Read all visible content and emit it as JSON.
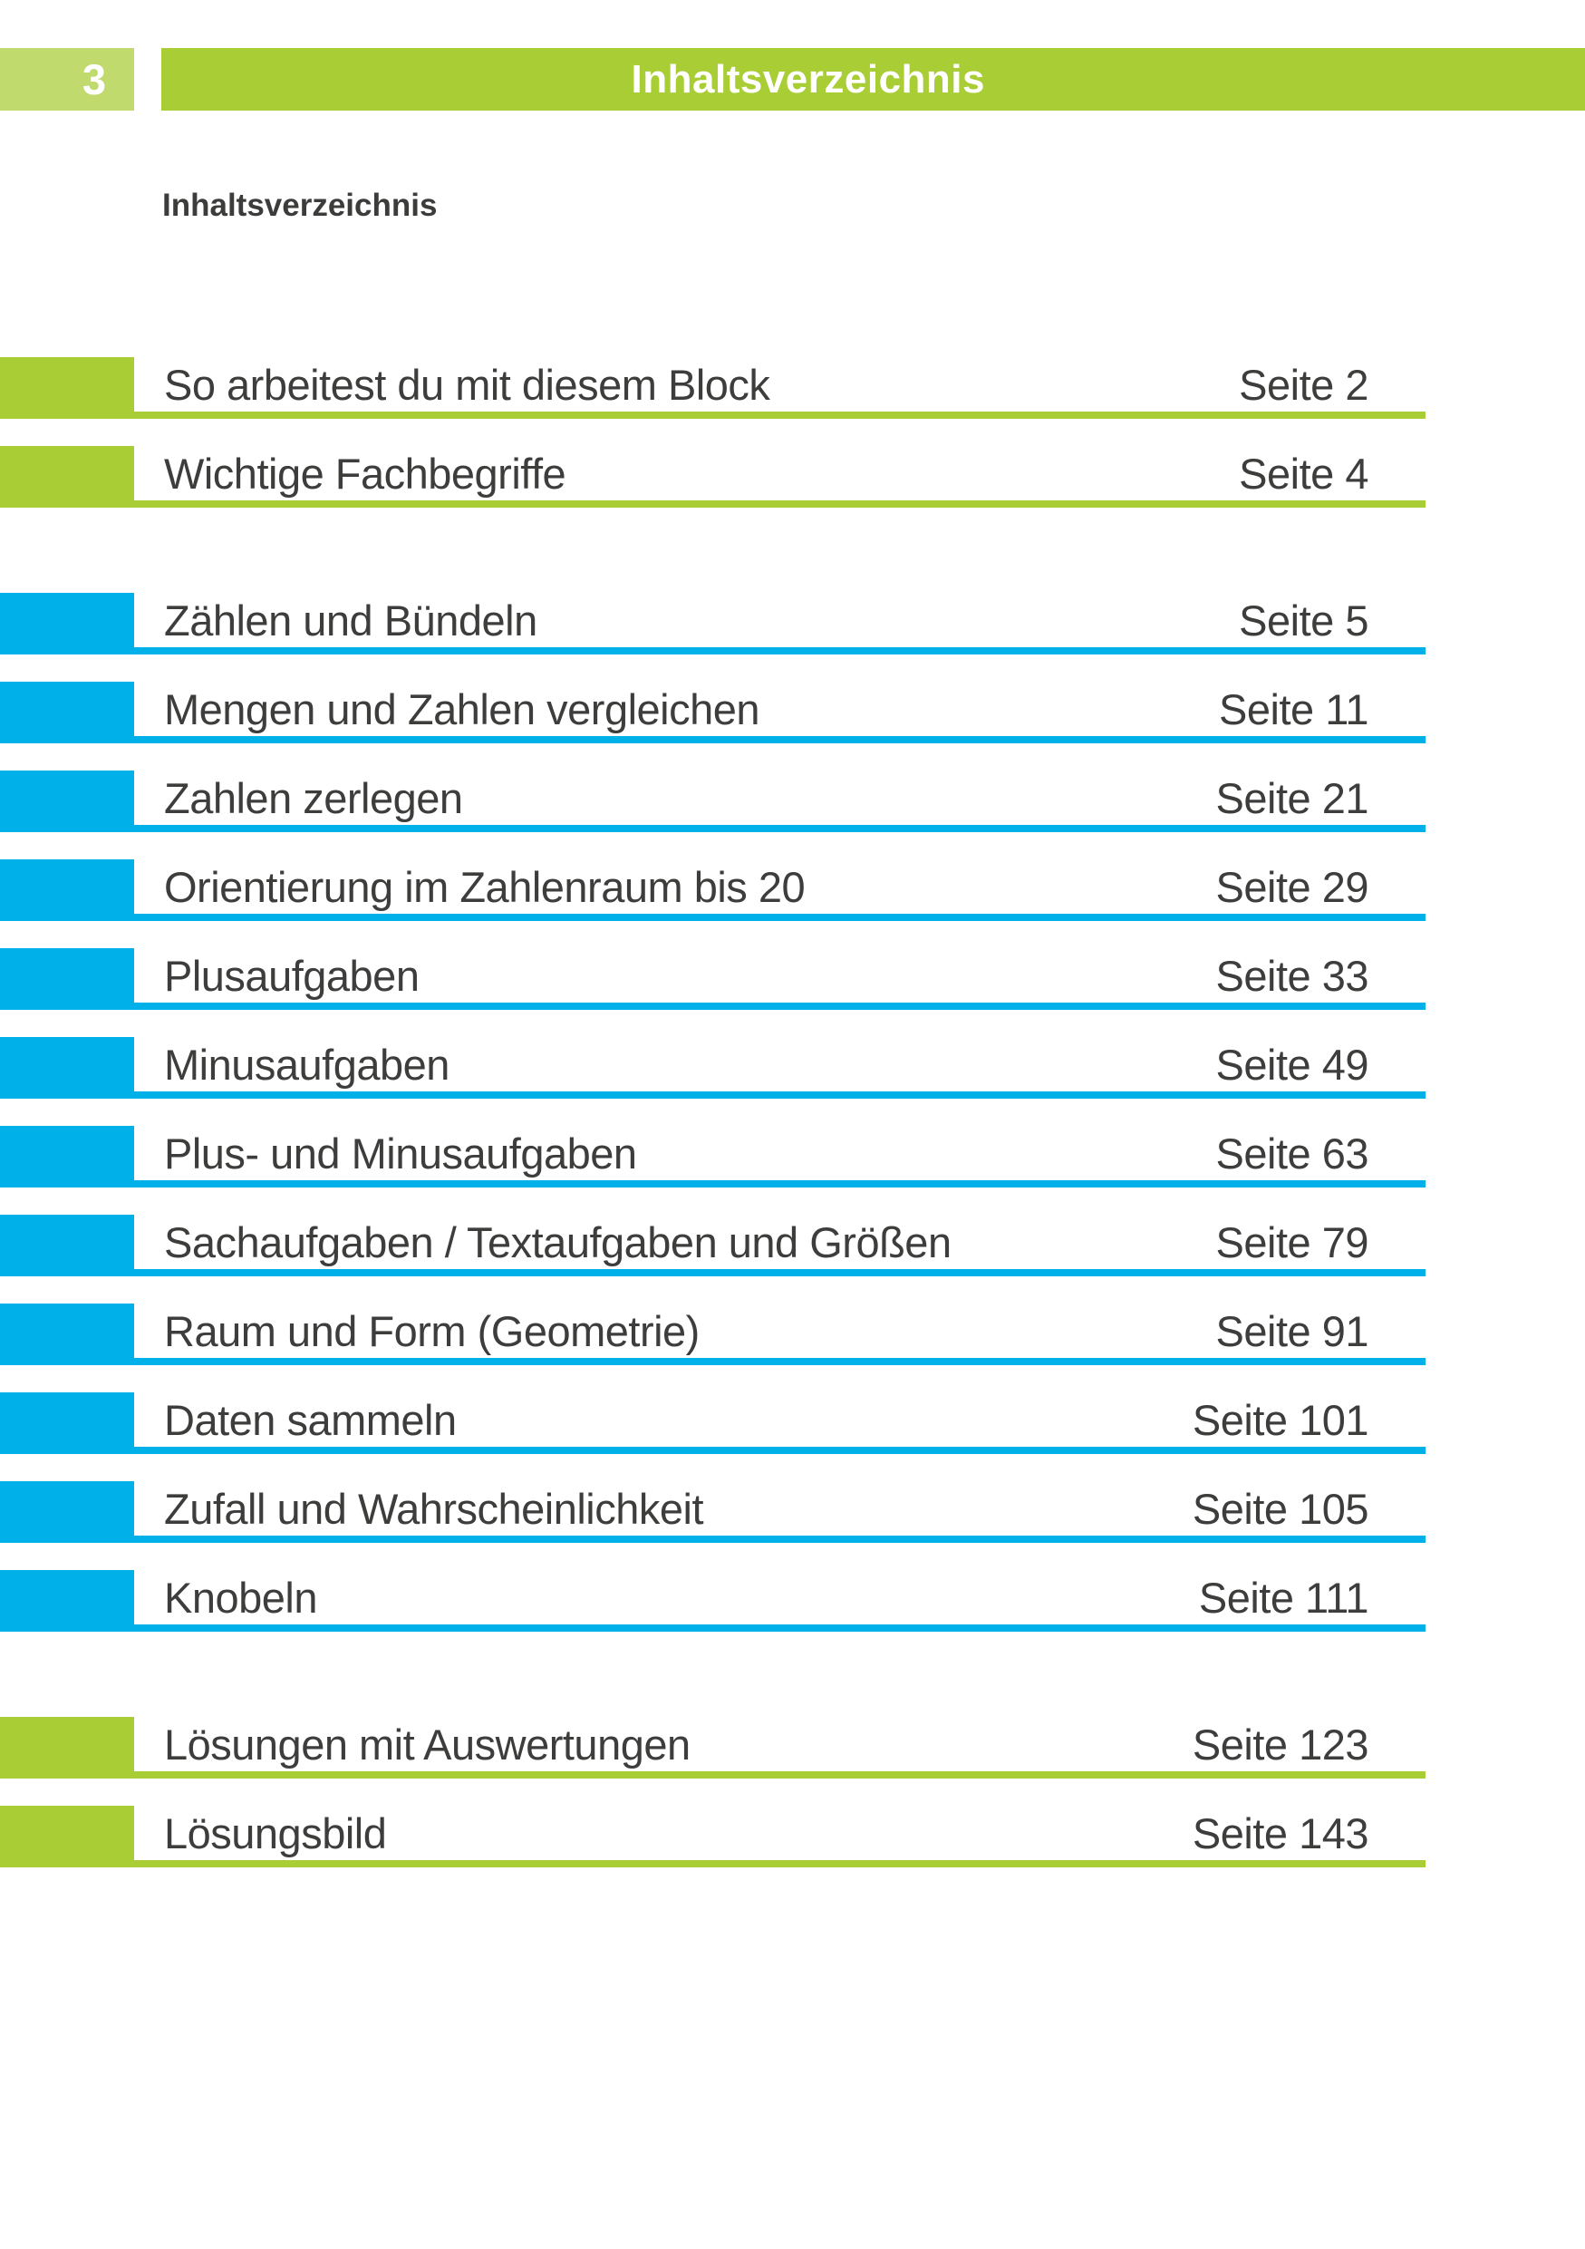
{
  "page": {
    "number": "3"
  },
  "header": {
    "title": "Inhaltsverzeichnis"
  },
  "heading": "Inhaltsverzeichnis",
  "colors": {
    "green": "#a9cd35",
    "light_green": "#c0da6d",
    "blue": "#00b1e9",
    "text_dark": "#3c3c3b",
    "white": "#ffffff"
  },
  "toc": {
    "entries": [
      {
        "title": "So arbeitest du mit diesem Block",
        "page": "Seite 2",
        "color": "green",
        "section_start": false
      },
      {
        "title": "Wichtige Fachbegriffe",
        "page": "Seite 4",
        "color": "green",
        "section_start": false
      },
      {
        "title": "Zählen und Bündeln",
        "page": "Seite 5",
        "color": "blue",
        "section_start": true
      },
      {
        "title": "Mengen und Zahlen vergleichen",
        "page": "Seite 11",
        "color": "blue",
        "section_start": false
      },
      {
        "title": "Zahlen zerlegen",
        "page": "Seite 21",
        "color": "blue",
        "section_start": false
      },
      {
        "title": "Orientierung im Zahlenraum bis 20",
        "page": "Seite 29",
        "color": "blue",
        "section_start": false
      },
      {
        "title": "Plusaufgaben",
        "page": "Seite 33",
        "color": "blue",
        "section_start": false
      },
      {
        "title": "Minusaufgaben",
        "page": "Seite 49",
        "color": "blue",
        "section_start": false
      },
      {
        "title": "Plus- und Minusaufgaben",
        "page": "Seite 63",
        "color": "blue",
        "section_start": false
      },
      {
        "title": "Sachaufgaben / Textaufgaben und Größen",
        "page": "Seite 79",
        "color": "blue",
        "section_start": false
      },
      {
        "title": "Raum und Form (Geometrie)",
        "page": "Seite 91",
        "color": "blue",
        "section_start": false
      },
      {
        "title": "Daten sammeln",
        "page": "Seite 101",
        "color": "blue",
        "section_start": false
      },
      {
        "title": "Zufall und Wahrscheinlichkeit",
        "page": "Seite 105",
        "color": "blue",
        "section_start": false
      },
      {
        "title": "Knobeln",
        "page": "Seite 111",
        "color": "blue",
        "section_start": false
      },
      {
        "title": "Lösungen mit Auswertungen",
        "page": "Seite 123",
        "color": "green",
        "section_start": true
      },
      {
        "title": "Lösungsbild",
        "page": "Seite 143",
        "color": "green",
        "section_start": false
      }
    ]
  }
}
